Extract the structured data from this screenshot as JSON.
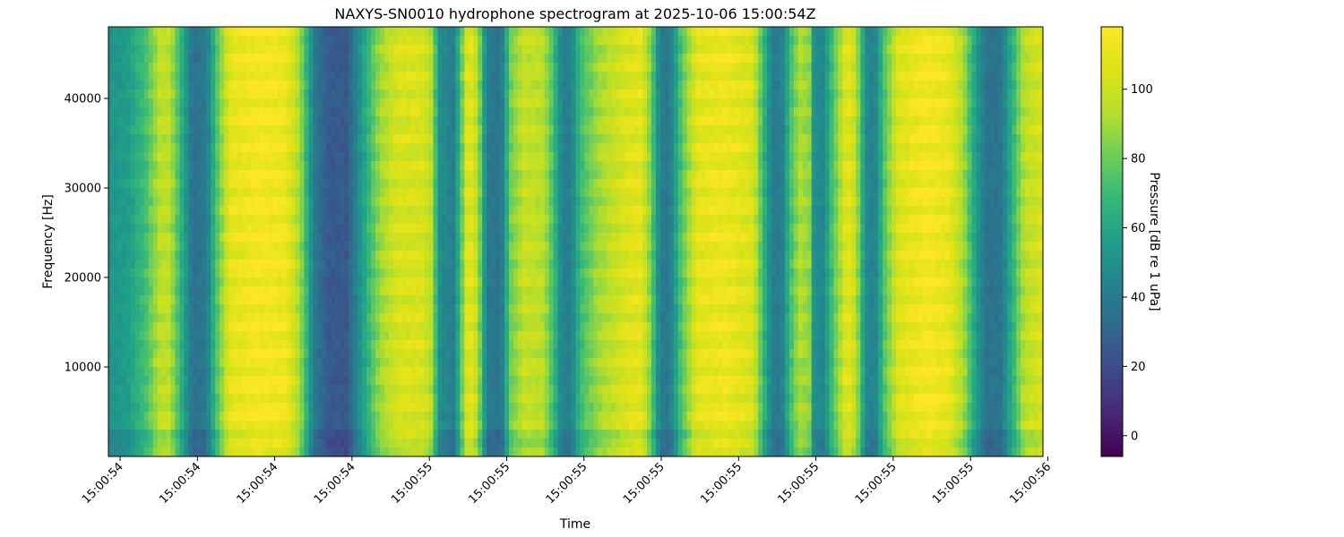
{
  "chart_data": {
    "type": "heatmap",
    "title": "NAXYS-SN0010 hydrophone spectrogram at 2025-10-06 15:00:54Z",
    "xlabel": "Time",
    "ylabel": "Frequency [Hz]",
    "x_tick_labels": [
      "15:00:54",
      "15:00:54",
      "15:00:54",
      "15:00:54",
      "15:00:55",
      "15:00:55",
      "15:00:55",
      "15:00:55",
      "15:00:55",
      "15:00:55",
      "15:00:55",
      "15:00:55",
      "15:00:56"
    ],
    "y_ticks": [
      10000,
      20000,
      30000,
      40000
    ],
    "ylim": [
      0,
      48000
    ],
    "colorbar": {
      "label": "Pressure [dB re 1 uPa]",
      "ticks": [
        0,
        20,
        40,
        60,
        80,
        100
      ],
      "range": [
        -6,
        118
      ],
      "colormap": "viridis"
    },
    "column_levels_db": [
      {
        "t": 0.0,
        "db": 52
      },
      {
        "t": 0.02,
        "db": 55
      },
      {
        "t": 0.04,
        "db": 72
      },
      {
        "t": 0.055,
        "db": 95
      },
      {
        "t": 0.065,
        "db": 96
      },
      {
        "t": 0.08,
        "db": 60
      },
      {
        "t": 0.09,
        "db": 35
      },
      {
        "t": 0.105,
        "db": 40
      },
      {
        "t": 0.115,
        "db": 72
      },
      {
        "t": 0.13,
        "db": 108
      },
      {
        "t": 0.16,
        "db": 115
      },
      {
        "t": 0.19,
        "db": 112
      },
      {
        "t": 0.205,
        "db": 90
      },
      {
        "t": 0.22,
        "db": 40
      },
      {
        "t": 0.235,
        "db": 26
      },
      {
        "t": 0.255,
        "db": 25
      },
      {
        "t": 0.275,
        "db": 62
      },
      {
        "t": 0.29,
        "db": 88
      },
      {
        "t": 0.31,
        "db": 104
      },
      {
        "t": 0.335,
        "db": 104
      },
      {
        "t": 0.345,
        "db": 95
      },
      {
        "t": 0.355,
        "db": 48
      },
      {
        "t": 0.37,
        "db": 42
      },
      {
        "t": 0.38,
        "db": 88
      },
      {
        "t": 0.385,
        "db": 112
      },
      {
        "t": 0.395,
        "db": 95
      },
      {
        "t": 0.405,
        "db": 40
      },
      {
        "t": 0.42,
        "db": 36
      },
      {
        "t": 0.43,
        "db": 80
      },
      {
        "t": 0.445,
        "db": 98
      },
      {
        "t": 0.465,
        "db": 95
      },
      {
        "t": 0.475,
        "db": 74
      },
      {
        "t": 0.485,
        "db": 44
      },
      {
        "t": 0.495,
        "db": 42
      },
      {
        "t": 0.505,
        "db": 70
      },
      {
        "t": 0.525,
        "db": 90
      },
      {
        "t": 0.555,
        "db": 105
      },
      {
        "t": 0.57,
        "db": 108
      },
      {
        "t": 0.58,
        "db": 84
      },
      {
        "t": 0.59,
        "db": 42
      },
      {
        "t": 0.6,
        "db": 38
      },
      {
        "t": 0.612,
        "db": 72
      },
      {
        "t": 0.63,
        "db": 108
      },
      {
        "t": 0.66,
        "db": 112
      },
      {
        "t": 0.69,
        "db": 104
      },
      {
        "t": 0.7,
        "db": 70
      },
      {
        "t": 0.71,
        "db": 42
      },
      {
        "t": 0.72,
        "db": 40
      },
      {
        "t": 0.73,
        "db": 72
      },
      {
        "t": 0.74,
        "db": 92
      },
      {
        "t": 0.75,
        "db": 86
      },
      {
        "t": 0.755,
        "db": 50
      },
      {
        "t": 0.765,
        "db": 45
      },
      {
        "t": 0.775,
        "db": 74
      },
      {
        "t": 0.785,
        "db": 96
      },
      {
        "t": 0.79,
        "db": 110
      },
      {
        "t": 0.8,
        "db": 96
      },
      {
        "t": 0.81,
        "db": 48
      },
      {
        "t": 0.82,
        "db": 42
      },
      {
        "t": 0.83,
        "db": 74
      },
      {
        "t": 0.845,
        "db": 105
      },
      {
        "t": 0.875,
        "db": 115
      },
      {
        "t": 0.9,
        "db": 110
      },
      {
        "t": 0.915,
        "db": 90
      },
      {
        "t": 0.93,
        "db": 52
      },
      {
        "t": 0.94,
        "db": 36
      },
      {
        "t": 0.955,
        "db": 38
      },
      {
        "t": 0.965,
        "db": 60
      },
      {
        "t": 0.98,
        "db": 95
      },
      {
        "t": 1.0,
        "db": 104
      }
    ]
  }
}
